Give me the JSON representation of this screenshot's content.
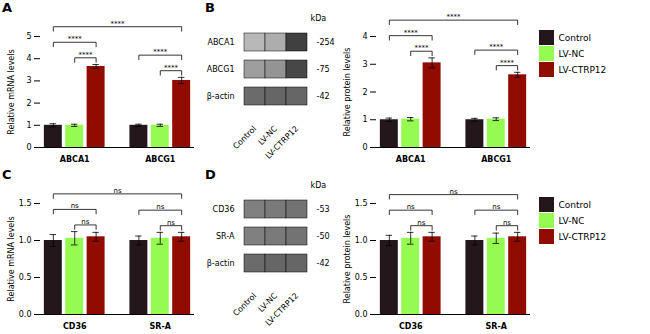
{
  "chart_data": [
    {
      "type": "bar",
      "label": "A",
      "ylabel": "Relative mRNA levels",
      "categories": [
        "ABCA1",
        "ABCG1"
      ],
      "series": [
        {
          "name": "Control",
          "values": [
            1.0,
            1.0
          ],
          "errors": [
            0.07,
            0.05
          ]
        },
        {
          "name": "LV-NC",
          "values": [
            1.0,
            1.0
          ],
          "errors": [
            0.05,
            0.05
          ]
        },
        {
          "name": "LV-CTRP12",
          "values": [
            3.65,
            3.02
          ],
          "errors": [
            0.09,
            0.14
          ]
        }
      ],
      "ylim": [
        0,
        5.0
      ],
      "yticks": [
        0,
        1,
        2,
        3,
        4,
        5
      ],
      "annotations": [
        {
          "text": "****",
          "from": {
            "group": "ABCA1",
            "series": "LV-NC"
          },
          "to": {
            "group": "ABCA1",
            "series": "LV-CTRP12"
          }
        },
        {
          "text": "****",
          "from": {
            "group": "ABCA1",
            "series": "Control"
          },
          "to": {
            "group": "ABCA1",
            "series": "LV-CTRP12"
          }
        },
        {
          "text": "****",
          "from": {
            "group": "ABCG1",
            "series": "LV-NC"
          },
          "to": {
            "group": "ABCG1",
            "series": "LV-CTRP12"
          }
        },
        {
          "text": "****",
          "from": {
            "group": "ABCG1",
            "series": "Control"
          },
          "to": {
            "group": "ABCG1",
            "series": "LV-CTRP12"
          }
        },
        {
          "text": "****",
          "from": {
            "group": "ABCA1",
            "series": "Control"
          },
          "to": {
            "group": "ABCG1",
            "series": "LV-CTRP12"
          }
        }
      ]
    },
    {
      "type": "blot",
      "label": "B",
      "rows": [
        "ABCA1",
        "ABCG1",
        "β-actin"
      ],
      "row_labels_right": [
        "-254",
        "-75",
        "-42"
      ],
      "row_labels_header": "kDa",
      "categories": [
        "Control",
        "LV-NC",
        "LV-CTRP12"
      ],
      "intensity": [
        [
          0.72,
          0.68,
          0.25
        ],
        [
          0.62,
          0.58,
          0.28
        ],
        [
          0.42,
          0.4,
          0.4
        ]
      ]
    },
    {
      "type": "bar",
      "ylabel": "Relative protein levels",
      "categories": [
        "ABCA1",
        "ABCG1"
      ],
      "series": [
        {
          "name": "Control",
          "values": [
            1.0,
            1.0
          ],
          "errors": [
            0.06,
            0.05
          ]
        },
        {
          "name": "LV-NC",
          "values": [
            1.02,
            1.02
          ],
          "errors": [
            0.06,
            0.05
          ]
        },
        {
          "name": "LV-CTRP12",
          "values": [
            3.05,
            2.62
          ],
          "errors": [
            0.18,
            0.09
          ]
        }
      ],
      "ylim": [
        0,
        4.0
      ],
      "yticks": [
        0,
        1,
        2,
        3,
        4
      ],
      "legend": "right",
      "annotations": [
        {
          "text": "****",
          "from": {
            "group": "ABCA1",
            "series": "LV-NC"
          },
          "to": {
            "group": "ABCA1",
            "series": "LV-CTRP12"
          }
        },
        {
          "text": "****",
          "from": {
            "group": "ABCA1",
            "series": "Control"
          },
          "to": {
            "group": "ABCA1",
            "series": "LV-CTRP12"
          }
        },
        {
          "text": "****",
          "from": {
            "group": "ABCG1",
            "series": "LV-NC"
          },
          "to": {
            "group": "ABCG1",
            "series": "LV-CTRP12"
          }
        },
        {
          "text": "****",
          "from": {
            "group": "ABCG1",
            "series": "Control"
          },
          "to": {
            "group": "ABCG1",
            "series": "LV-CTRP12"
          }
        },
        {
          "text": "****",
          "from": {
            "group": "ABCA1",
            "series": "Control"
          },
          "to": {
            "group": "ABCG1",
            "series": "LV-CTRP12"
          }
        }
      ]
    },
    {
      "type": "bar",
      "label": "C",
      "ylabel": "Relative mRNA levels",
      "categories": [
        "CD36",
        "SR-A"
      ],
      "series": [
        {
          "name": "Control",
          "values": [
            1.0,
            1.0
          ],
          "errors": [
            0.08,
            0.06
          ]
        },
        {
          "name": "LV-NC",
          "values": [
            1.03,
            1.03
          ],
          "errors": [
            0.09,
            0.08
          ]
        },
        {
          "name": "LV-CTRP12",
          "values": [
            1.05,
            1.05
          ],
          "errors": [
            0.06,
            0.06
          ]
        }
      ],
      "ylim": [
        0,
        1.5
      ],
      "yticks": [
        {
          "value": 0.0,
          "label": "0.0"
        },
        0.5,
        {
          "value": 1.0,
          "label": "1.0"
        },
        1.5
      ],
      "annotations": [
        {
          "text": "ns",
          "from": {
            "group": "CD36",
            "series": "LV-NC"
          },
          "to": {
            "group": "CD36",
            "series": "LV-CTRP12"
          }
        },
        {
          "text": "ns",
          "from": {
            "group": "CD36",
            "series": "Control"
          },
          "to": {
            "group": "CD36",
            "series": "LV-CTRP12"
          }
        },
        {
          "text": "ns",
          "from": {
            "group": "SR-A",
            "series": "LV-NC"
          },
          "to": {
            "group": "SR-A",
            "series": "LV-CTRP12"
          }
        },
        {
          "text": "ns",
          "from": {
            "group": "SR-A",
            "series": "Control"
          },
          "to": {
            "group": "SR-A",
            "series": "LV-CTRP12"
          }
        },
        {
          "text": "ns",
          "from": {
            "group": "CD36",
            "series": "Control"
          },
          "to": {
            "group": "SR-A",
            "series": "LV-CTRP12"
          }
        }
      ]
    },
    {
      "type": "blot",
      "label": "D",
      "rows": [
        "CD36",
        "SR-A",
        "β-actin"
      ],
      "row_labels_right": [
        "-53",
        "-50",
        "-42"
      ],
      "row_labels_header": "kDa",
      "categories": [
        "Control",
        "LV-NC",
        "LV-CTRP12"
      ],
      "intensity": [
        [
          0.5,
          0.48,
          0.45
        ],
        [
          0.5,
          0.48,
          0.45
        ],
        [
          0.42,
          0.4,
          0.4
        ]
      ]
    },
    {
      "type": "bar",
      "ylabel": "Relative protein levels",
      "categories": [
        "CD36",
        "SR-A"
      ],
      "series": [
        {
          "name": "Control",
          "values": [
            1.0,
            1.0
          ],
          "errors": [
            0.07,
            0.06
          ]
        },
        {
          "name": "LV-NC",
          "values": [
            1.03,
            1.03
          ],
          "errors": [
            0.08,
            0.07
          ]
        },
        {
          "name": "LV-CTRP12",
          "values": [
            1.05,
            1.05
          ],
          "errors": [
            0.06,
            0.06
          ]
        }
      ],
      "ylim": [
        0,
        1.5
      ],
      "yticks": [
        {
          "value": 0.0,
          "label": "0.0"
        },
        0.5,
        {
          "value": 1.0,
          "label": "1.0"
        },
        1.5
      ],
      "legend": "right",
      "annotations": [
        {
          "text": "ns",
          "from": {
            "group": "CD36",
            "series": "LV-NC"
          },
          "to": {
            "group": "CD36",
            "series": "LV-CTRP12"
          }
        },
        {
          "text": "ns",
          "from": {
            "group": "CD36",
            "series": "Control"
          },
          "to": {
            "group": "CD36",
            "series": "LV-CTRP12"
          }
        },
        {
          "text": "ns",
          "from": {
            "group": "SR-A",
            "series": "LV-NC"
          },
          "to": {
            "group": "SR-A",
            "series": "LV-CTRP12"
          }
        },
        {
          "text": "ns",
          "from": {
            "group": "SR-A",
            "series": "Control"
          },
          "to": {
            "group": "SR-A",
            "series": "LV-CTRP12"
          }
        },
        {
          "text": "ns",
          "from": {
            "group": "CD36",
            "series": "Control"
          },
          "to": {
            "group": "SR-A",
            "series": "LV-CTRP12"
          }
        }
      ]
    }
  ]
}
